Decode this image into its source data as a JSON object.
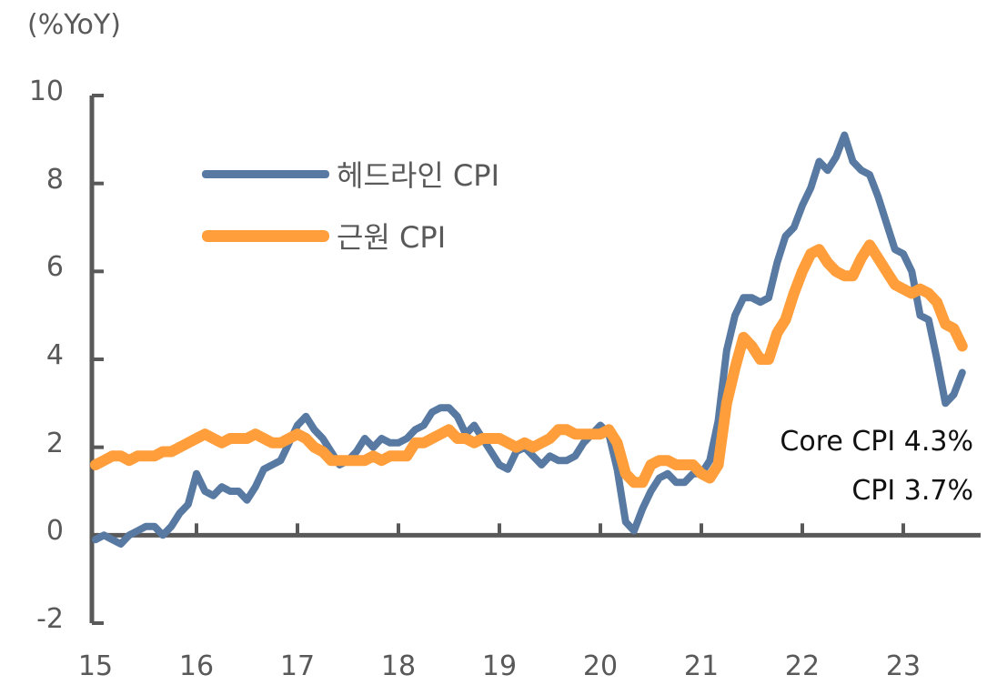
{
  "unit_label": "(%YoY)",
  "legend": [
    {
      "label": "헤드라인 CPI",
      "color": "#5879A1"
    },
    {
      "label": "근원 CPI",
      "color": "#FF9E3A"
    }
  ],
  "annotations": {
    "core": "Core CPI 4.3%",
    "cpi": "CPI 3.7%"
  },
  "colors": {
    "axis": "#595959",
    "headline": "#5879A1",
    "core": "#FF9E3A"
  },
  "chart_data": {
    "type": "line",
    "title": "",
    "xlabel": "",
    "ylabel": "(%YoY)",
    "ylim": [
      -2,
      10
    ],
    "yticks": [
      -2,
      0,
      2,
      4,
      6,
      8,
      10
    ],
    "xticks": [
      "15",
      "16",
      "17",
      "18",
      "19",
      "20",
      "21",
      "22",
      "23"
    ],
    "grid": false,
    "legend_position": "upper-left",
    "x_start": "2015-01",
    "x_end": "2023-08",
    "frequency": "monthly",
    "series": [
      {
        "name": "헤드라인 CPI",
        "values": [
          -0.1,
          0.0,
          -0.1,
          -0.2,
          0.0,
          0.1,
          0.2,
          0.2,
          0.0,
          0.2,
          0.5,
          0.7,
          1.4,
          1.0,
          0.9,
          1.1,
          1.0,
          1.0,
          0.8,
          1.1,
          1.5,
          1.6,
          1.7,
          2.1,
          2.5,
          2.7,
          2.4,
          2.2,
          1.9,
          1.6,
          1.7,
          1.9,
          2.2,
          2.0,
          2.2,
          2.1,
          2.1,
          2.2,
          2.4,
          2.5,
          2.8,
          2.9,
          2.9,
          2.7,
          2.3,
          2.5,
          2.2,
          1.9,
          1.6,
          1.5,
          1.9,
          2.0,
          1.8,
          1.6,
          1.8,
          1.7,
          1.7,
          1.8,
          2.1,
          2.3,
          2.5,
          2.3,
          1.5,
          0.3,
          0.1,
          0.6,
          1.0,
          1.3,
          1.4,
          1.2,
          1.2,
          1.4,
          1.4,
          1.7,
          2.6,
          4.2,
          5.0,
          5.4,
          5.4,
          5.3,
          5.4,
          6.2,
          6.8,
          7.0,
          7.5,
          7.9,
          8.5,
          8.3,
          8.6,
          9.1,
          8.5,
          8.3,
          8.2,
          7.7,
          7.1,
          6.5,
          6.4,
          6.0,
          5.0,
          4.9,
          4.0,
          3.0,
          3.2,
          3.7
        ]
      },
      {
        "name": "근원 CPI",
        "values": [
          1.6,
          1.7,
          1.8,
          1.8,
          1.7,
          1.8,
          1.8,
          1.8,
          1.9,
          1.9,
          2.0,
          2.1,
          2.2,
          2.3,
          2.2,
          2.1,
          2.2,
          2.2,
          2.2,
          2.3,
          2.2,
          2.1,
          2.1,
          2.2,
          2.3,
          2.2,
          2.0,
          1.9,
          1.7,
          1.7,
          1.7,
          1.7,
          1.7,
          1.8,
          1.7,
          1.8,
          1.8,
          1.8,
          2.1,
          2.1,
          2.2,
          2.3,
          2.4,
          2.2,
          2.2,
          2.1,
          2.2,
          2.2,
          2.2,
          2.1,
          2.0,
          2.1,
          2.0,
          2.1,
          2.2,
          2.4,
          2.4,
          2.3,
          2.3,
          2.3,
          2.3,
          2.4,
          2.1,
          1.4,
          1.2,
          1.2,
          1.6,
          1.7,
          1.7,
          1.6,
          1.6,
          1.6,
          1.4,
          1.3,
          1.6,
          3.0,
          3.8,
          4.5,
          4.3,
          4.0,
          4.0,
          4.6,
          4.9,
          5.5,
          6.0,
          6.4,
          6.5,
          6.2,
          6.0,
          5.9,
          5.9,
          6.3,
          6.6,
          6.3,
          6.0,
          5.7,
          5.6,
          5.5,
          5.6,
          5.5,
          5.3,
          4.8,
          4.7,
          4.3
        ]
      }
    ]
  }
}
